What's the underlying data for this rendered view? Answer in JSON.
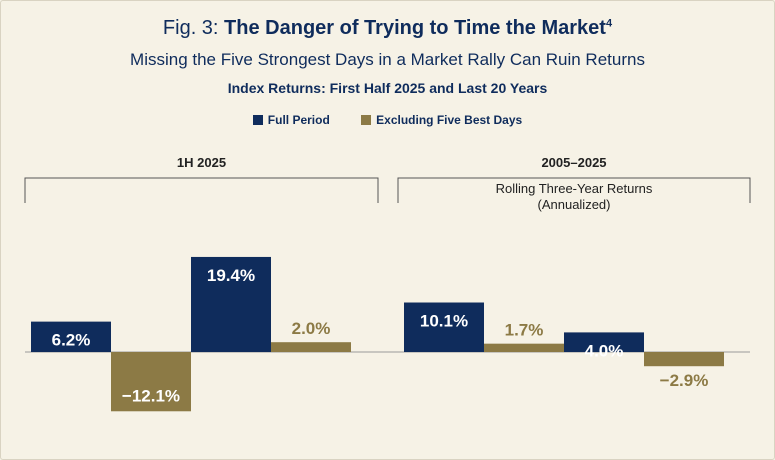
{
  "figure": {
    "fig_label": "Fig. 3:",
    "title": "The Danger of Trying to Time the Market",
    "footnote_mark": "4",
    "subtitle": "Missing the Five Strongest Days in a Market Rally Can Ruin Returns",
    "subsubtitle": "Index Returns: First Half 2025 and Last 20 Years"
  },
  "colors": {
    "full": "#0f2c5c",
    "excl": "#8c7a45",
    "background": "#f6f2e6"
  },
  "chart_data": {
    "type": "bar",
    "title": "The Danger of Trying to Time the Market",
    "xlabel": "",
    "ylabel": "",
    "ylim": [
      -12.1,
      19.4
    ],
    "grid": false,
    "legend_position": "top-center",
    "series": [
      {
        "name": "Full Period",
        "color_key": "full"
      },
      {
        "name": "Excluding Five Best Days",
        "color_key": "excl"
      }
    ],
    "groups": [
      {
        "label": "1H 2025",
        "note": [],
        "bars": [
          {
            "series": "Full Period",
            "value": 6.2,
            "label": "6.2%"
          },
          {
            "series": "Excluding Five Best Days",
            "value": -12.1,
            "label": "−12.1%"
          },
          {
            "series": "Full Period",
            "value": 19.4,
            "label": "19.4%"
          },
          {
            "series": "Excluding Five Best Days",
            "value": 2.0,
            "label": "2.0%"
          }
        ]
      },
      {
        "label": "2005–2025",
        "note": [
          "Rolling Three-Year Returns",
          "(Annualized)"
        ],
        "bars": [
          {
            "series": "Full Period",
            "value": 10.1,
            "label": "10.1%"
          },
          {
            "series": "Excluding Five Best Days",
            "value": 1.7,
            "label": "1.7%"
          },
          {
            "series": "Full Period",
            "value": 4.0,
            "label": "4.0%"
          },
          {
            "series": "Excluding Five Best Days",
            "value": -2.9,
            "label": "−2.9%"
          }
        ]
      }
    ]
  }
}
